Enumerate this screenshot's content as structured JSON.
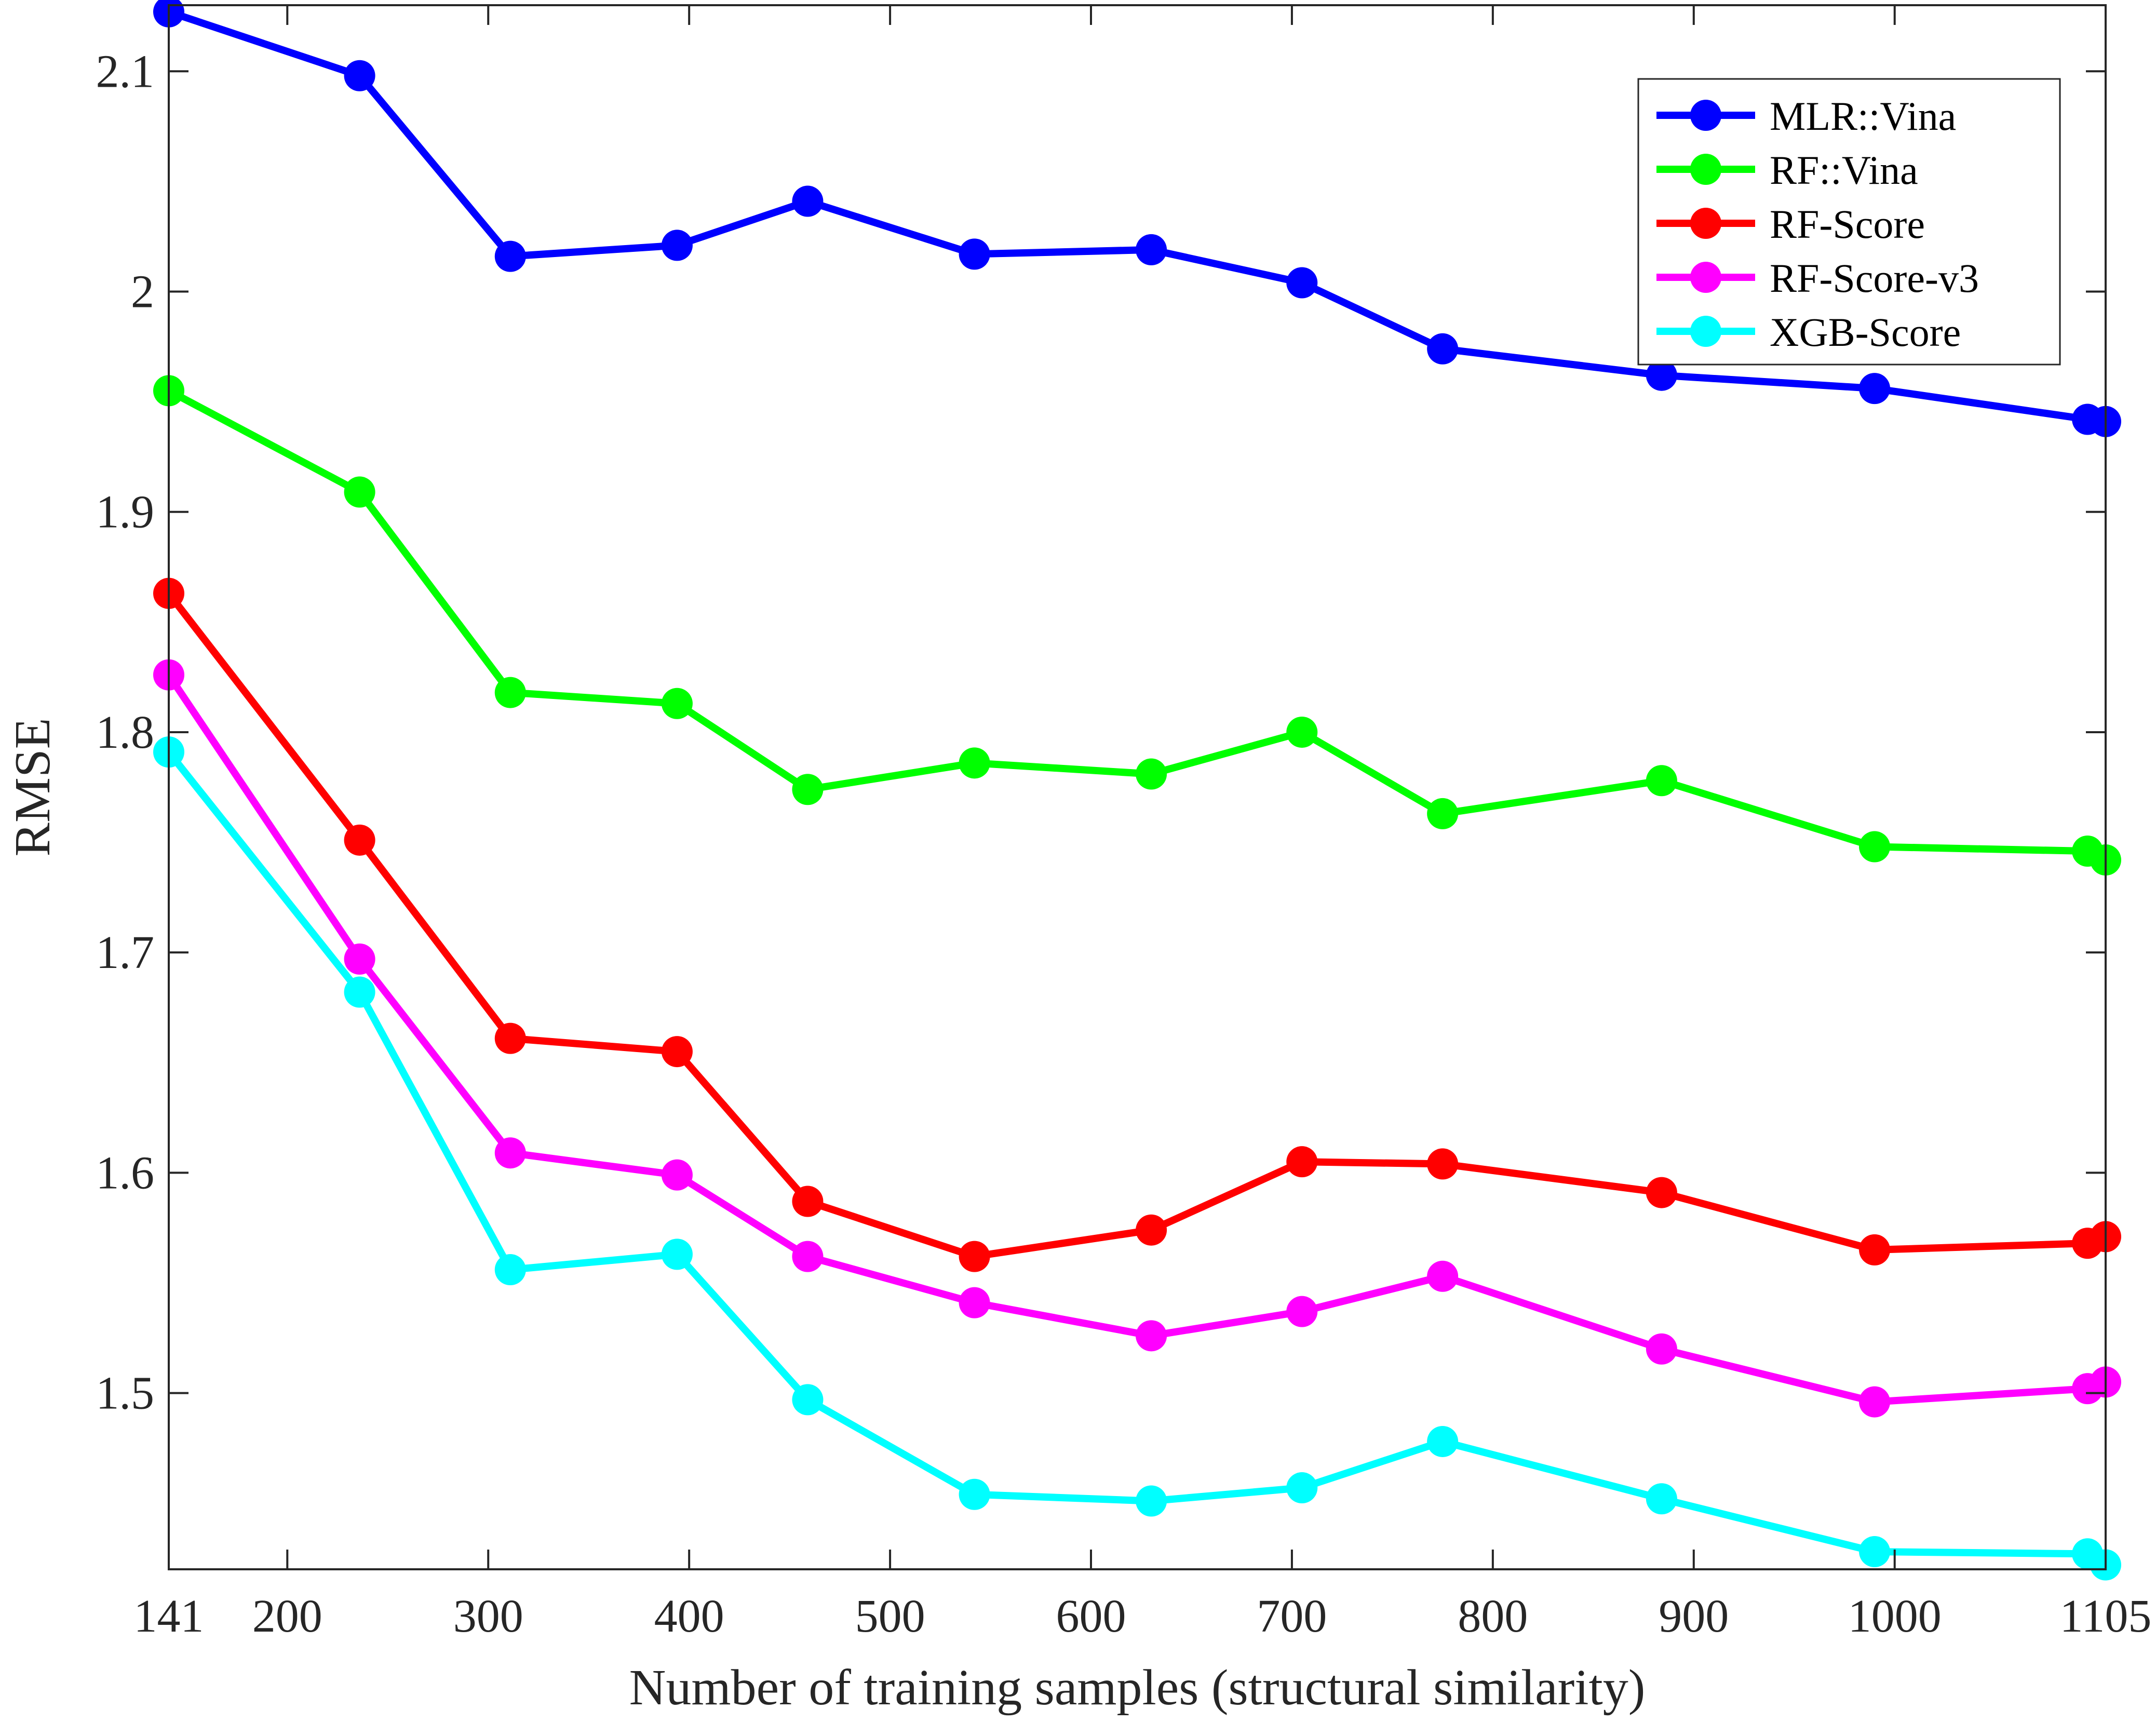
{
  "chart_data": {
    "type": "line",
    "title": "",
    "xlabel": "Number of training samples (structural similarity)",
    "ylabel": "RMSE",
    "xlim": [
      141,
      1105
    ],
    "ylim": [
      1.42,
      2.13
    ],
    "xticks": [
      141,
      200,
      300,
      400,
      500,
      600,
      700,
      800,
      900,
      1000,
      1105
    ],
    "yticks": [
      1.5,
      1.6,
      1.7,
      1.8,
      1.9,
      2.0,
      2.1
    ],
    "ytick_labels": [
      "1.5",
      "1.6",
      "1.7",
      "1.8",
      "1.9",
      "2",
      "2.1"
    ],
    "grid": false,
    "legend_position": "top-right",
    "x": [
      141,
      236,
      311,
      394,
      459,
      542,
      630,
      705,
      775,
      884,
      990,
      1096,
      1105
    ],
    "series": [
      {
        "name": "MLR::Vina",
        "color": "#0000ff",
        "values": [
          2.127,
          2.098,
          2.016,
          2.021,
          2.041,
          2.017,
          2.019,
          2.004,
          1.974,
          1.962,
          1.956,
          1.942,
          1.941
        ]
      },
      {
        "name": "RF::Vina",
        "color": "#00ff00",
        "values": [
          1.955,
          1.909,
          1.818,
          1.813,
          1.774,
          1.786,
          1.781,
          1.8,
          1.763,
          1.778,
          1.748,
          1.746,
          1.742
        ]
      },
      {
        "name": "RF-Score",
        "color": "#ff0000",
        "values": [
          1.863,
          1.751,
          1.661,
          1.655,
          1.587,
          1.562,
          1.574,
          1.605,
          1.604,
          1.591,
          1.565,
          1.568,
          1.571
        ]
      },
      {
        "name": "RF-Score-v3",
        "color": "#ff00ff",
        "values": [
          1.826,
          1.697,
          1.609,
          1.599,
          1.562,
          1.541,
          1.526,
          1.537,
          1.553,
          1.52,
          1.496,
          1.502,
          1.505
        ]
      },
      {
        "name": "XGB-Score",
        "color": "#00ffff",
        "values": [
          1.791,
          1.682,
          1.556,
          1.563,
          1.497,
          1.454,
          1.451,
          1.457,
          1.478,
          1.452,
          1.428,
          1.427,
          1.422
        ]
      }
    ]
  }
}
